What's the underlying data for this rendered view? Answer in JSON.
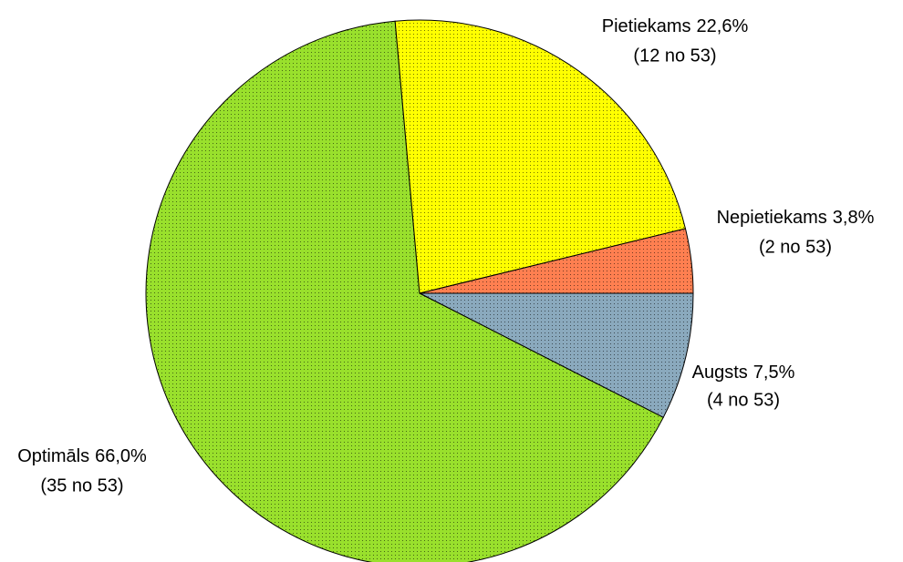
{
  "chart_data": {
    "type": "pie",
    "categories": [
      "Augsts",
      "Optimāls",
      "Pietiekams",
      "Nepietiekams"
    ],
    "values": [
      7.5,
      66.0,
      22.6,
      3.8
    ],
    "value_labels": [
      "7,5%",
      "66,0%",
      "22,6%",
      "3,8%"
    ],
    "count_labels": [
      "(4 no 53)",
      "(35 no 53)",
      "(12 no 53)",
      "(2 no 53)"
    ],
    "colors": [
      "#8aa9bd",
      "#99e02c",
      "#ffff00",
      "#ff7f50"
    ]
  }
}
